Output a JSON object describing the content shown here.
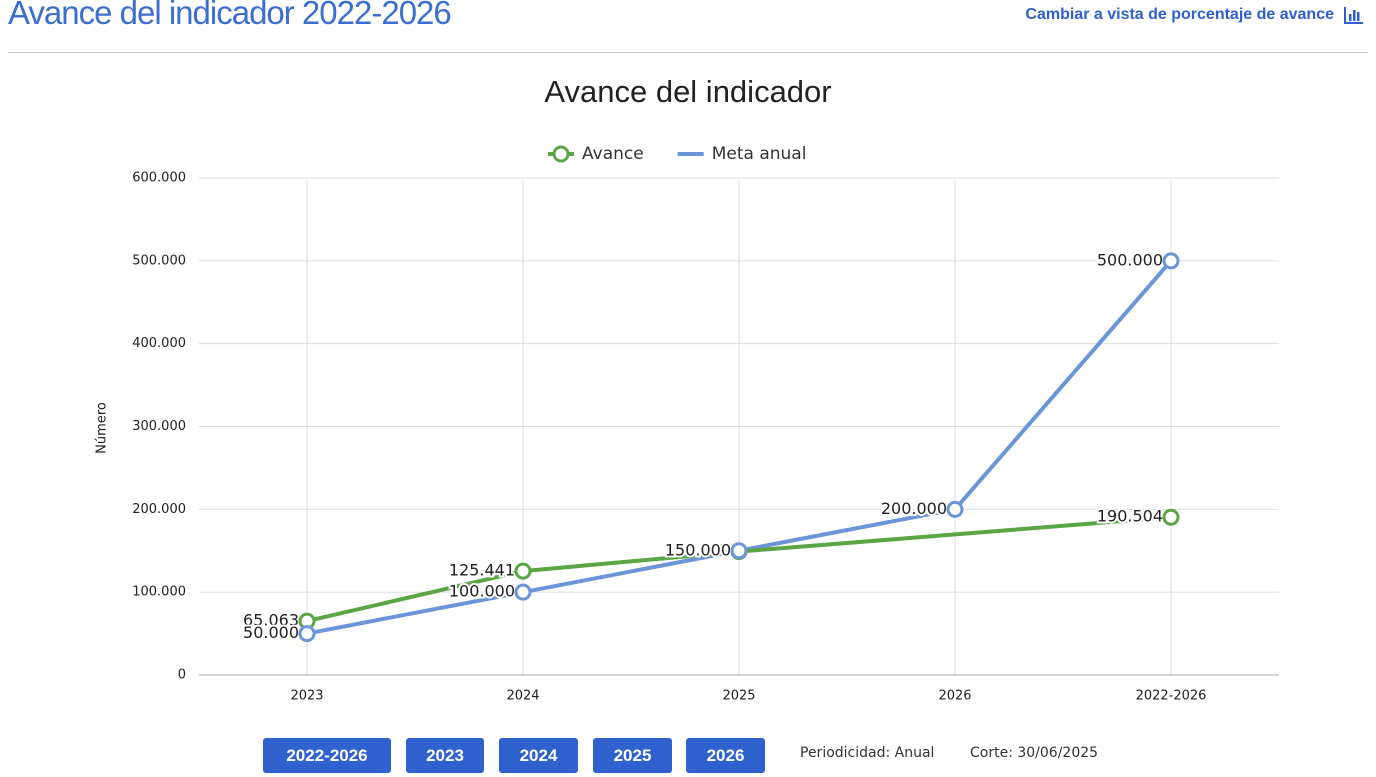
{
  "header": {
    "title": "Avance del indicador 2022-2026",
    "link": "Cambiar a vista de porcentaje de avance"
  },
  "chart_data": {
    "type": "line",
    "title": "Avance del indicador",
    "y_label": "Número",
    "categories": [
      "2023",
      "2024",
      "2025",
      "2026",
      "2022-2026"
    ],
    "series": [
      {
        "name": "Avance",
        "color": "#5aa544",
        "values": [
          65063,
          125441,
          149000,
          null,
          190504
        ],
        "value_labels": [
          "65.063",
          "125.441",
          null,
          null,
          "190.504"
        ]
      },
      {
        "name": "Meta anual",
        "color": "#6a95d8",
        "values": [
          50000,
          100000,
          150000,
          200000,
          500000
        ],
        "value_labels": [
          "50.000",
          "100.000",
          "150.000",
          "200.000",
          "500.000"
        ]
      }
    ],
    "ylim": [
      0,
      600000
    ],
    "yticks": [
      0,
      {
        "value": 100000,
        "label": "100.000"
      },
      {
        "value": 200000,
        "label": "200.000"
      },
      {
        "value": 300000,
        "label": "300.000"
      },
      {
        "value": 400000,
        "label": "400.000"
      },
      {
        "value": 500000,
        "label": "500.000"
      },
      {
        "value": 600000,
        "label": "600.000"
      }
    ],
    "grid": true,
    "span_gaps": true,
    "legend": "top"
  },
  "buttons": [
    "2022-2026",
    "2023",
    "2024",
    "2025",
    "2026"
  ],
  "footer": {
    "periodicity": "Periodicidad: Anual",
    "cutoff": "Corte: 30/06/2025"
  }
}
